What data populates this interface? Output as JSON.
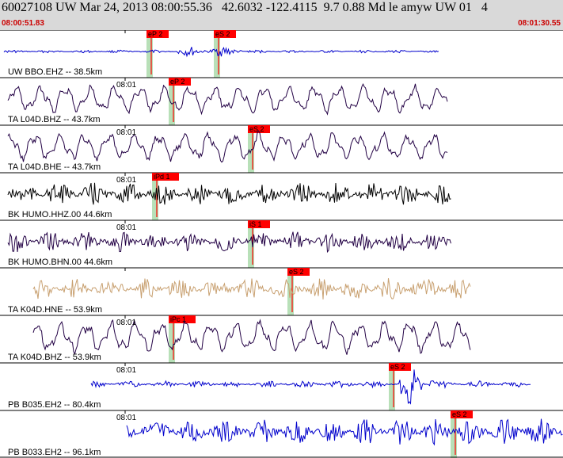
{
  "header": {
    "title": "60027108 UW Mar 24, 2013 08:00:55.36   42.6032 -122.4115  9.7 0.88 Md le amyw UW 01   4",
    "start_time": "08:00:51.83",
    "end_time": "08:01:30.55"
  },
  "colors": {
    "header_bg": "#d9d9d9",
    "time_text": "#cc0000",
    "pick_box": "#ff0000",
    "window_band": "#b8e0b8",
    "pick_line": "#ff0000"
  },
  "traces": [
    {
      "label": "UW BBO.EHZ -- 38.5km",
      "time_label": "",
      "color": "#0000cc",
      "amplitude": 0.15,
      "style": "burst",
      "picks": [
        {
          "label": "eP 2",
          "pos": 0.26
        },
        {
          "label": "eS 2",
          "pos": 0.38
        }
      ]
    },
    {
      "label": "TA L04D.BHZ -- 43.7km",
      "time_label": "08:01",
      "color": "#220044",
      "amplitude": 0.7,
      "style": "long",
      "picks": [
        {
          "label": "eP 2",
          "pos": 0.3
        }
      ]
    },
    {
      "label": "TA L04D.BHE -- 43.7km",
      "time_label": "08:01",
      "color": "#220044",
      "amplitude": 0.7,
      "style": "long",
      "picks": [
        {
          "label": "eS 2",
          "pos": 0.44
        }
      ]
    },
    {
      "label": "BK HUMO.HHZ.00 44.6km",
      "time_label": "08:01",
      "color": "#000000",
      "amplitude": 0.6,
      "style": "noisy",
      "picks": [
        {
          "label": "iPd 1",
          "pos": 0.27
        }
      ]
    },
    {
      "label": "BK HUMO.BHN.00 44.6km",
      "time_label": "08:01",
      "color": "#220044",
      "amplitude": 0.55,
      "style": "noisy",
      "picks": [
        {
          "label": "iS 1",
          "pos": 0.44
        }
      ]
    },
    {
      "label": "TA K04D.HNE -- 53.9km",
      "time_label": "",
      "color": "#c8a070",
      "amplitude": 0.6,
      "style": "noisy",
      "picks": [
        {
          "label": "eS 2",
          "pos": 0.51
        }
      ]
    },
    {
      "label": "TA K04D.BHZ -- 53.9km",
      "time_label": "08:01",
      "color": "#220044",
      "amplitude": 0.8,
      "style": "long",
      "picks": [
        {
          "label": "iPc 1",
          "pos": 0.3
        }
      ]
    },
    {
      "label": "PB B035.EH2 -- 80.4km",
      "time_label": "08:01",
      "color": "#0000cc",
      "amplitude": 0.35,
      "style": "late",
      "picks": [
        {
          "label": "eS 2",
          "pos": 0.69
        }
      ]
    },
    {
      "label": "PB B033.EH2 -- 96.1km",
      "time_label": "08:01",
      "color": "#0000cc",
      "amplitude": 0.7,
      "style": "dense",
      "picks": [
        {
          "label": "eS 2",
          "pos": 0.8
        }
      ]
    }
  ]
}
